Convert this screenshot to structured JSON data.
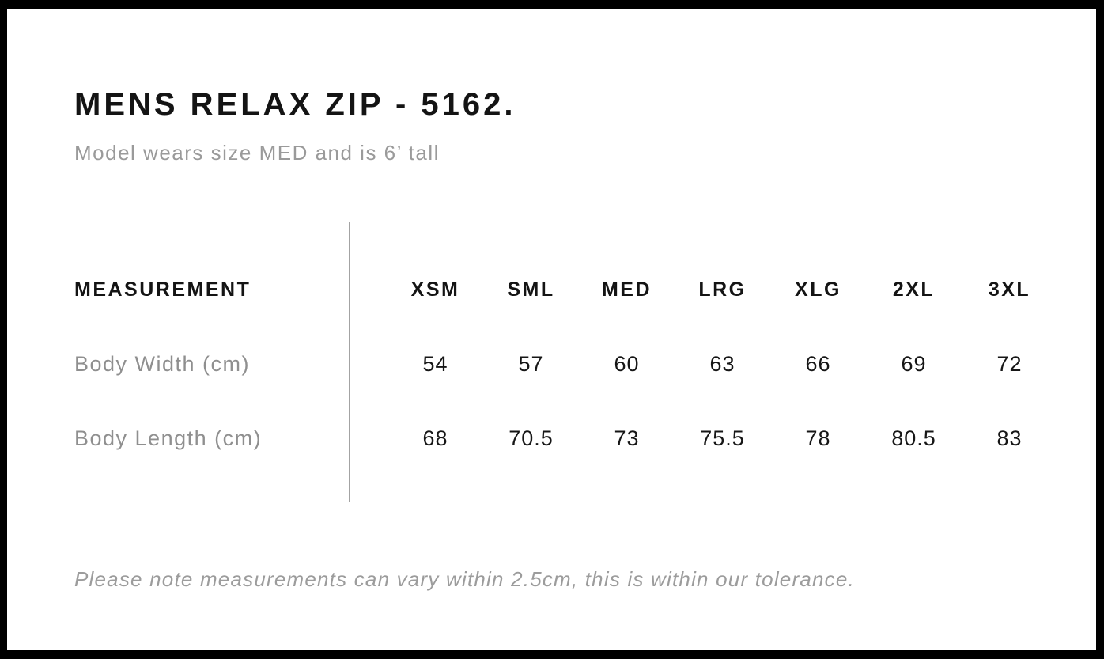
{
  "header": {
    "title": "MENS RELAX ZIP - 5162.",
    "subtitle": "Model wears size MED and is 6’ tall"
  },
  "chart_data": {
    "type": "table",
    "header_label": "MEASUREMENT",
    "columns": [
      "XSM",
      "SML",
      "MED",
      "LRG",
      "XLG",
      "2XL",
      "3XL"
    ],
    "rows": [
      {
        "label": "Body Width (cm)",
        "values": [
          "54",
          "57",
          "60",
          "63",
          "66",
          "69",
          "72"
        ]
      },
      {
        "label": "Body Length (cm)",
        "values": [
          "68",
          "70.5",
          "73",
          "75.5",
          "78",
          "80.5",
          "83"
        ]
      }
    ]
  },
  "footnote": {
    "text": "Please note measurements can vary within 2.5cm, this is within our tolerance."
  },
  "colors": {
    "frame_border": "#000000",
    "title_text": "#141414",
    "muted_text": "#9a9a9a",
    "divider": "#a3a3a3",
    "background": "#ffffff"
  }
}
